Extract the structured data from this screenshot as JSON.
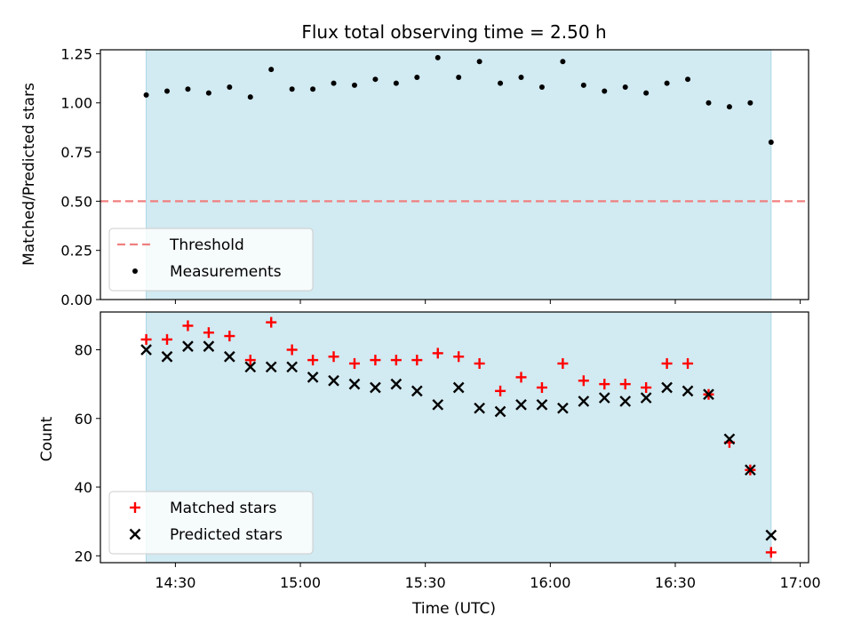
{
  "chart_data": {
    "title": "Flux total observing time = 2.50 h",
    "xlabel": "Time (UTC)",
    "x_ticks": [
      "14:30",
      "15:00",
      "15:30",
      "16:00",
      "16:30",
      "17:00"
    ],
    "x_range_minutes": [
      852,
      1022
    ],
    "shaded_span": [
      "14:23",
      "16:53"
    ],
    "shade_color": "#add8e6",
    "panels": [
      {
        "type": "scatter",
        "ylabel": "Matched/Predicted stars",
        "ylim": [
          0,
          1.27
        ],
        "y_ticks": [
          0.0,
          0.25,
          0.5,
          0.75,
          1.0,
          1.25
        ],
        "y_tick_labels": [
          "0.00",
          "0.25",
          "0.50",
          "0.75",
          "1.00",
          "1.25"
        ],
        "threshold": {
          "name": "Threshold",
          "value": 0.5,
          "color": "#f08080"
        },
        "legend_location": "lower-left",
        "series": [
          {
            "name": "Measurements",
            "color": "#000000",
            "marker": "dot",
            "x": [
              "14:23",
              "14:28",
              "14:33",
              "14:38",
              "14:43",
              "14:48",
              "14:53",
              "14:58",
              "15:03",
              "15:08",
              "15:13",
              "15:18",
              "15:23",
              "15:28",
              "15:33",
              "15:38",
              "15:43",
              "15:48",
              "15:53",
              "15:58",
              "16:03",
              "16:08",
              "16:13",
              "16:18",
              "16:23",
              "16:28",
              "16:33",
              "16:38",
              "16:43",
              "16:48",
              "16:53"
            ],
            "y": [
              1.04,
              1.06,
              1.07,
              1.05,
              1.08,
              1.03,
              1.17,
              1.07,
              1.07,
              1.1,
              1.09,
              1.12,
              1.1,
              1.13,
              1.23,
              1.13,
              1.21,
              1.1,
              1.13,
              1.08,
              1.21,
              1.09,
              1.06,
              1.08,
              1.05,
              1.1,
              1.12,
              1.0,
              0.98,
              1.0,
              0.8
            ]
          }
        ]
      },
      {
        "type": "scatter",
        "ylabel": "Count",
        "ylim": [
          18,
          91
        ],
        "y_ticks": [
          20,
          40,
          60,
          80
        ],
        "y_tick_labels": [
          "20",
          "40",
          "60",
          "80"
        ],
        "legend_location": "lower-left",
        "series": [
          {
            "name": "Matched stars",
            "color": "#ff0000",
            "marker": "plus",
            "x": [
              "14:23",
              "14:28",
              "14:33",
              "14:38",
              "14:43",
              "14:48",
              "14:53",
              "14:58",
              "15:03",
              "15:08",
              "15:13",
              "15:18",
              "15:23",
              "15:28",
              "15:33",
              "15:38",
              "15:43",
              "15:48",
              "15:53",
              "15:58",
              "16:03",
              "16:08",
              "16:13",
              "16:18",
              "16:23",
              "16:28",
              "16:33",
              "16:38",
              "16:43",
              "16:48",
              "16:53"
            ],
            "y": [
              83,
              83,
              87,
              85,
              84,
              77,
              88,
              80,
              77,
              78,
              76,
              77,
              77,
              77,
              79,
              78,
              76,
              68,
              72,
              69,
              76,
              71,
              70,
              70,
              69,
              76,
              76,
              67,
              53,
              45,
              21
            ]
          },
          {
            "name": "Predicted stars",
            "color": "#000000",
            "marker": "x",
            "x": [
              "14:23",
              "14:28",
              "14:33",
              "14:38",
              "14:43",
              "14:48",
              "14:53",
              "14:58",
              "15:03",
              "15:08",
              "15:13",
              "15:18",
              "15:23",
              "15:28",
              "15:33",
              "15:38",
              "15:43",
              "15:48",
              "15:53",
              "15:58",
              "16:03",
              "16:08",
              "16:13",
              "16:18",
              "16:23",
              "16:28",
              "16:33",
              "16:38",
              "16:43",
              "16:48",
              "16:53"
            ],
            "y": [
              80,
              78,
              81,
              81,
              78,
              75,
              75,
              75,
              72,
              71,
              70,
              69,
              70,
              68,
              64,
              69,
              63,
              62,
              64,
              64,
              63,
              65,
              66,
              65,
              66,
              69,
              68,
              67,
              54,
              45,
              26
            ]
          }
        ]
      }
    ]
  }
}
